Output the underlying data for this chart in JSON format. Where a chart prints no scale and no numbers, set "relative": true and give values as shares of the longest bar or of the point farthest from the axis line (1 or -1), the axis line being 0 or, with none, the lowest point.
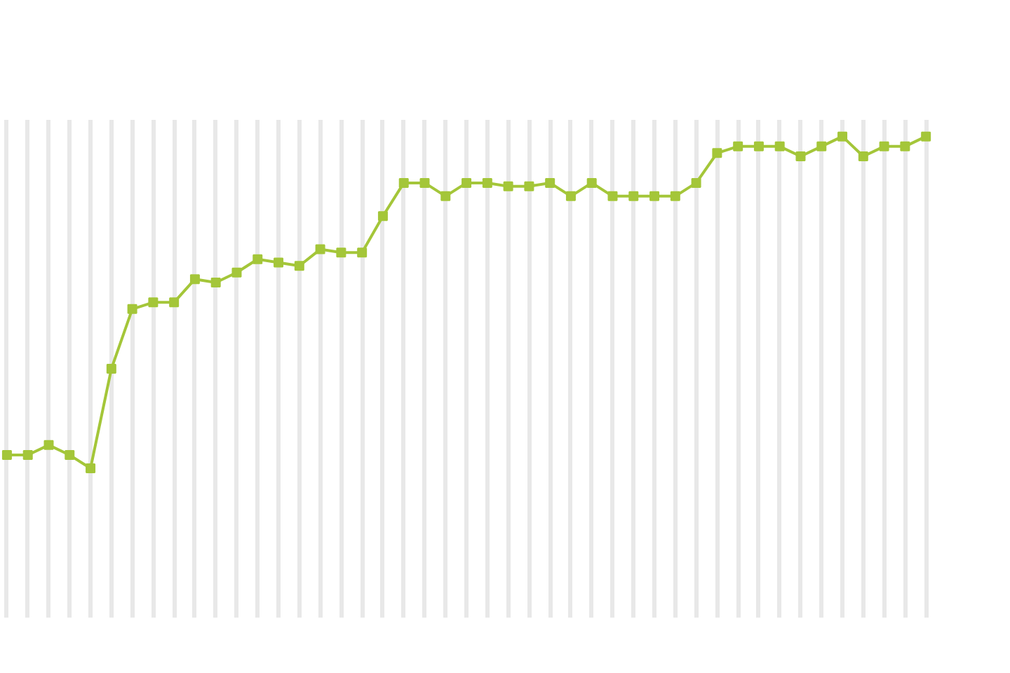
{
  "chart_data": {
    "type": "line",
    "relative": true,
    "grid": "x",
    "marker": "square",
    "line_style": "solid",
    "categories": [
      null,
      null,
      null,
      null,
      null,
      null,
      null,
      null,
      null,
      null,
      null,
      null,
      null,
      null,
      null,
      null,
      null,
      null,
      null,
      null,
      null,
      null,
      null,
      null,
      null,
      null,
      null,
      null,
      null,
      null,
      null,
      null,
      null,
      null,
      null,
      null,
      null,
      null,
      null,
      null,
      null,
      null,
      null,
      null,
      null
    ],
    "series": [
      {
        "color": "#a4c639",
        "values": [
          0.04,
          0.04,
          0.07,
          0.04,
          0,
          0.3,
          0.48,
          0.5,
          0.5,
          0.57,
          0.56,
          0.59,
          0.63,
          0.62,
          0.61,
          0.66,
          0.65,
          0.65,
          0.76,
          0.86,
          0.86,
          0.82,
          0.86,
          0.86,
          0.85,
          0.85,
          0.86,
          0.82,
          0.86,
          0.82,
          0.82,
          0.82,
          0.82,
          0.86,
          0.95,
          0.97,
          0.97,
          0.97,
          0.94,
          0.97,
          1,
          0.94,
          0.97,
          0.97,
          1
        ]
      }
    ]
  }
}
